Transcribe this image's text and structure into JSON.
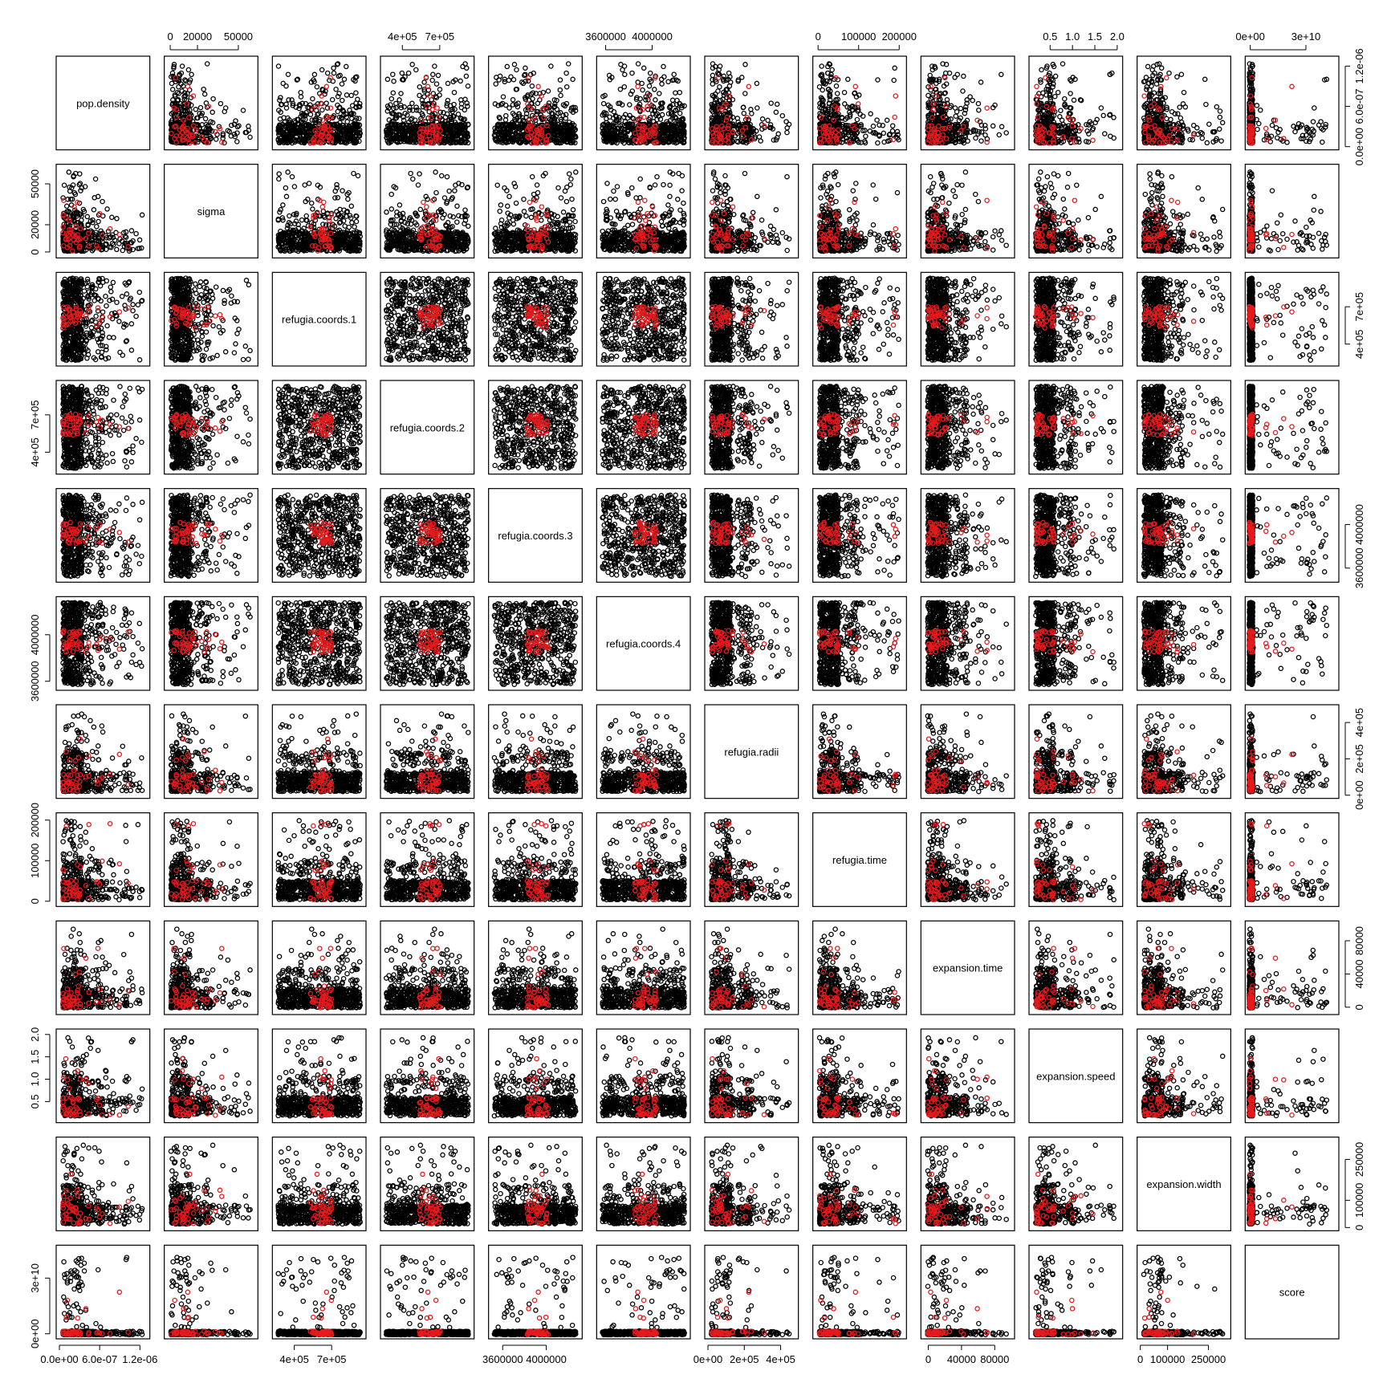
{
  "chart_data": {
    "type": "scatter",
    "layout": "scatterplot-matrix",
    "point_colors": {
      "main": "#000000",
      "highlight": "#e41a1c"
    },
    "variables": [
      {
        "name": "pop.density",
        "range": [
          0,
          1.3e-06
        ],
        "ticks": [
          0,
          6e-07,
          1.2e-06
        ],
        "tick_labels": [
          "0.0e+00",
          "6.0e-07",
          "1.2e-06"
        ],
        "dist": "low"
      },
      {
        "name": "sigma",
        "range": [
          -2000,
          62000
        ],
        "ticks": [
          0,
          20000,
          50000
        ],
        "tick_labels": [
          "0",
          "20000",
          "50000"
        ],
        "dist": "low"
      },
      {
        "name": "refugia.coords.1",
        "range": [
          250000,
          950000
        ],
        "ticks": [
          400000,
          700000
        ],
        "tick_labels": [
          "4e+05",
          "7e+05"
        ],
        "dist": "uniform"
      },
      {
        "name": "refugia.coords.2",
        "range": [
          250000,
          950000
        ],
        "ticks": [
          400000,
          700000
        ],
        "tick_labels": [
          "4e+05",
          "7e+05"
        ],
        "dist": "uniform"
      },
      {
        "name": "refugia.coords.3",
        "range": [
          3500000,
          4300000
        ],
        "ticks": [
          3600000,
          4000000
        ],
        "tick_labels": [
          "3600000",
          "4000000"
        ],
        "dist": "uniform"
      },
      {
        "name": "refugia.coords.4",
        "range": [
          3550000,
          4300000
        ],
        "ticks": [
          3600000,
          4000000
        ],
        "tick_labels": [
          "3600000",
          "4000000"
        ],
        "dist": "uniform"
      },
      {
        "name": "refugia.radii",
        "range": [
          0,
          480000
        ],
        "ticks": [
          0,
          200000,
          400000
        ],
        "tick_labels": [
          "0e+00",
          "2e+05",
          "4e+05"
        ],
        "dist": "low"
      },
      {
        "name": "refugia.time",
        "range": [
          -5000,
          210000
        ],
        "ticks": [
          0,
          100000,
          200000
        ],
        "tick_labels": [
          "0",
          "100000",
          "200000"
        ],
        "dist": "low"
      },
      {
        "name": "expansion.time",
        "range": [
          -5000,
          100000
        ],
        "ticks": [
          0,
          40000,
          80000
        ],
        "tick_labels": [
          "0",
          "40000",
          "80000"
        ],
        "dist": "low"
      },
      {
        "name": "expansion.speed",
        "range": [
          0.1,
          2.05
        ],
        "ticks": [
          0.5,
          1.0,
          1.5,
          2.0
        ],
        "tick_labels": [
          "0.5",
          "1.0",
          "1.5",
          "2.0"
        ],
        "dist": "low"
      },
      {
        "name": "expansion.width",
        "range": [
          0,
          320000
        ],
        "ticks": [
          0,
          100000,
          250000
        ],
        "tick_labels": [
          "0",
          "100000",
          "250000"
        ],
        "dist": "low"
      },
      {
        "name": "score",
        "range": [
          -1000000000.0,
          46000000000.0
        ],
        "ticks": [
          0,
          30000000000.0
        ],
        "tick_labels": [
          "0e+00",
          "3e+10"
        ],
        "dist": "verylow"
      }
    ]
  }
}
